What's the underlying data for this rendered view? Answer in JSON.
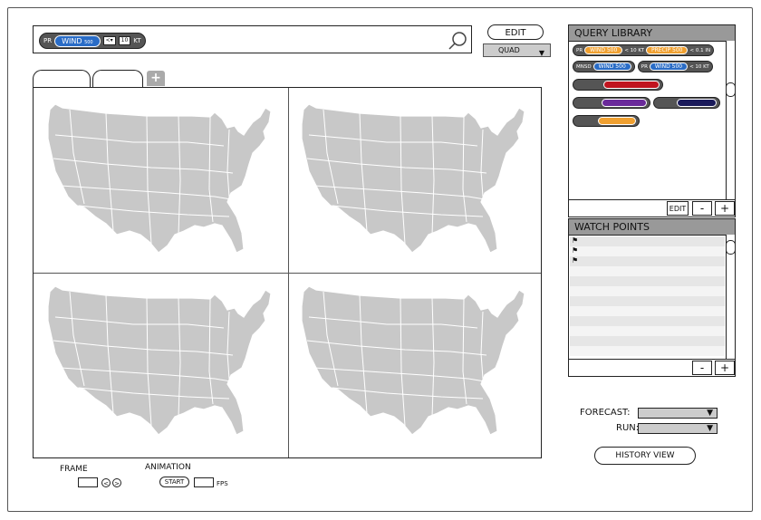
{
  "query": {
    "prefix": "PR",
    "variable": "WIND",
    "level": "500",
    "op": "<",
    "value": "10",
    "unit": "KT"
  },
  "toolbar": {
    "edit_label": "EDIT",
    "layout_value": "QUAD"
  },
  "tabs": [
    {
      "label": ""
    },
    {
      "label": ""
    }
  ],
  "tab_add_label": "+",
  "maps": [
    "conus-map-1",
    "conus-map-2",
    "conus-map-3",
    "conus-map-4"
  ],
  "controls": {
    "frame_label": "FRAME",
    "animation_label": "ANIMATION",
    "start_label": "START",
    "fps_label": "FPS",
    "prev": "<",
    "next": ">"
  },
  "query_library": {
    "title": "QUERY LIBRARY",
    "items": [
      {
        "parts": [
          {
            "kind": "text",
            "text": "PR"
          },
          {
            "kind": "pill",
            "text": "WIND 500",
            "color": "#f0a030"
          },
          {
            "kind": "text",
            "text": "< 10 KT"
          },
          {
            "kind": "pill",
            "text": "PRECIP 500",
            "color": "#f0a030"
          },
          {
            "kind": "text",
            "text": "< 0.1 IN"
          }
        ]
      },
      {
        "parts": [
          {
            "kind": "text",
            "text": "MNSD"
          },
          {
            "kind": "pill",
            "text": "WIND 500",
            "color": "#2a6cc6"
          }
        ]
      },
      {
        "parts": [
          {
            "kind": "text",
            "text": "PR"
          },
          {
            "kind": "pill",
            "text": "WIND 500",
            "color": "#2a6cc6"
          },
          {
            "kind": "text",
            "text": "< 10 KT"
          }
        ]
      },
      {
        "color": "#c0141f"
      },
      {
        "color": "#6a2a9a"
      },
      {
        "color": "#1a1a5a"
      },
      {
        "color": "#f0a030"
      }
    ],
    "edit_label": "EDIT",
    "minus_label": "-",
    "plus_label": "+"
  },
  "watch_points": {
    "title": "WATCH POINTS",
    "rows": [
      "flag",
      "flag",
      "flag",
      "",
      "",
      "",
      "",
      "",
      "",
      "",
      "",
      ""
    ],
    "minus_label": "-",
    "plus_label": "+"
  },
  "forecast": {
    "forecast_label": "FORECAST:",
    "run_label": "RUN:",
    "forecast_value": "",
    "run_value": ""
  },
  "history_label": "HISTORY VIEW",
  "colors": {
    "map_fill": "#c8c8c8",
    "header": "#999999",
    "accent": "#2a6cc6"
  }
}
